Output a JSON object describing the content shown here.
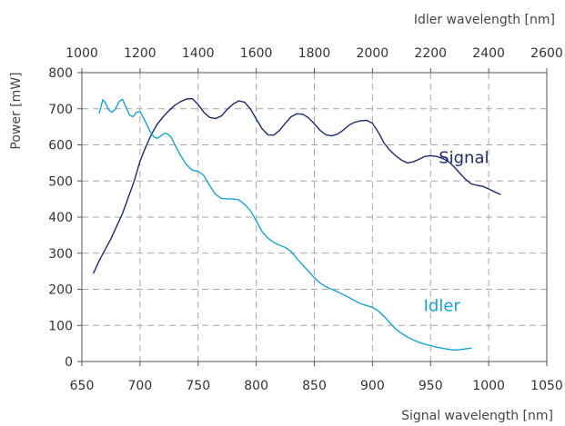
{
  "chart_data": {
    "type": "line",
    "xlabel": "Signal wavelength [nm]",
    "x2label": "Idler wavelength [nm]",
    "ylabel": "Power [mW]",
    "xlim": [
      650,
      1050
    ],
    "x2lim": [
      1000,
      2600
    ],
    "ylim": [
      0,
      800
    ],
    "xticks": [
      650,
      700,
      750,
      800,
      850,
      900,
      950,
      1000,
      1050
    ],
    "x2ticks": [
      1000,
      1200,
      1400,
      1600,
      1800,
      2000,
      2200,
      2400,
      2600
    ],
    "yticks": [
      0,
      100,
      200,
      300,
      400,
      500,
      600,
      700,
      800
    ],
    "grid": true,
    "colors": {
      "signal": "#1f2a6b",
      "idler": "#19a3d1",
      "grid": "#a6a6a6",
      "axis": "#555555"
    },
    "series": [
      {
        "name": "Signal",
        "color": "#1f2a6b",
        "label_at": [
          957,
          550
        ],
        "points": [
          [
            660,
            245
          ],
          [
            665,
            280
          ],
          [
            670,
            310
          ],
          [
            675,
            340
          ],
          [
            680,
            375
          ],
          [
            685,
            410
          ],
          [
            690,
            455
          ],
          [
            695,
            500
          ],
          [
            700,
            555
          ],
          [
            705,
            595
          ],
          [
            710,
            630
          ],
          [
            715,
            658
          ],
          [
            720,
            678
          ],
          [
            725,
            695
          ],
          [
            730,
            710
          ],
          [
            735,
            720
          ],
          [
            740,
            727
          ],
          [
            745,
            728
          ],
          [
            750,
            712
          ],
          [
            755,
            690
          ],
          [
            760,
            676
          ],
          [
            765,
            673
          ],
          [
            770,
            680
          ],
          [
            775,
            698
          ],
          [
            780,
            713
          ],
          [
            785,
            722
          ],
          [
            790,
            718
          ],
          [
            795,
            700
          ],
          [
            800,
            672
          ],
          [
            805,
            645
          ],
          [
            810,
            628
          ],
          [
            815,
            627
          ],
          [
            820,
            640
          ],
          [
            825,
            660
          ],
          [
            830,
            678
          ],
          [
            835,
            686
          ],
          [
            840,
            685
          ],
          [
            845,
            675
          ],
          [
            850,
            658
          ],
          [
            855,
            640
          ],
          [
            860,
            628
          ],
          [
            865,
            625
          ],
          [
            870,
            630
          ],
          [
            875,
            641
          ],
          [
            880,
            655
          ],
          [
            885,
            663
          ],
          [
            890,
            667
          ],
          [
            895,
            668
          ],
          [
            900,
            660
          ],
          [
            905,
            635
          ],
          [
            910,
            605
          ],
          [
            915,
            585
          ],
          [
            920,
            570
          ],
          [
            925,
            558
          ],
          [
            930,
            550
          ],
          [
            935,
            553
          ],
          [
            940,
            560
          ],
          [
            945,
            568
          ],
          [
            950,
            570
          ],
          [
            955,
            568
          ],
          [
            960,
            563
          ],
          [
            965,
            555
          ],
          [
            970,
            540
          ],
          [
            975,
            522
          ],
          [
            980,
            505
          ],
          [
            985,
            492
          ],
          [
            990,
            488
          ],
          [
            995,
            485
          ],
          [
            1000,
            478
          ],
          [
            1005,
            470
          ],
          [
            1010,
            463
          ]
        ]
      },
      {
        "name": "Idler",
        "color": "#19a3d1",
        "label_at": [
          944,
          140
        ],
        "points": [
          [
            665,
            688
          ],
          [
            668,
            725
          ],
          [
            670,
            718
          ],
          [
            673,
            697
          ],
          [
            676,
            690
          ],
          [
            679,
            700
          ],
          [
            682,
            720
          ],
          [
            685,
            726
          ],
          [
            688,
            705
          ],
          [
            691,
            682
          ],
          [
            694,
            678
          ],
          [
            697,
            690
          ],
          [
            700,
            692
          ],
          [
            703,
            675
          ],
          [
            706,
            655
          ],
          [
            709,
            635
          ],
          [
            712,
            622
          ],
          [
            715,
            618
          ],
          [
            718,
            625
          ],
          [
            721,
            632
          ],
          [
            724,
            630
          ],
          [
            727,
            620
          ],
          [
            730,
            600
          ],
          [
            735,
            570
          ],
          [
            740,
            545
          ],
          [
            745,
            530
          ],
          [
            750,
            527
          ],
          [
            755,
            515
          ],
          [
            760,
            487
          ],
          [
            765,
            463
          ],
          [
            770,
            452
          ],
          [
            775,
            450
          ],
          [
            780,
            450
          ],
          [
            785,
            448
          ],
          [
            790,
            435
          ],
          [
            795,
            418
          ],
          [
            800,
            390
          ],
          [
            805,
            360
          ],
          [
            810,
            342
          ],
          [
            815,
            330
          ],
          [
            820,
            322
          ],
          [
            825,
            316
          ],
          [
            830,
            305
          ],
          [
            835,
            285
          ],
          [
            840,
            267
          ],
          [
            845,
            250
          ],
          [
            850,
            232
          ],
          [
            855,
            217
          ],
          [
            860,
            207
          ],
          [
            865,
            200
          ],
          [
            870,
            193
          ],
          [
            875,
            185
          ],
          [
            880,
            177
          ],
          [
            885,
            168
          ],
          [
            890,
            160
          ],
          [
            895,
            155
          ],
          [
            900,
            150
          ],
          [
            905,
            140
          ],
          [
            910,
            125
          ],
          [
            915,
            107
          ],
          [
            920,
            90
          ],
          [
            925,
            78
          ],
          [
            930,
            68
          ],
          [
            935,
            60
          ],
          [
            940,
            53
          ],
          [
            945,
            48
          ],
          [
            950,
            44
          ],
          [
            955,
            40
          ],
          [
            960,
            37
          ],
          [
            965,
            34
          ],
          [
            970,
            32
          ],
          [
            975,
            33
          ],
          [
            980,
            35
          ],
          [
            985,
            37
          ]
        ]
      }
    ]
  }
}
